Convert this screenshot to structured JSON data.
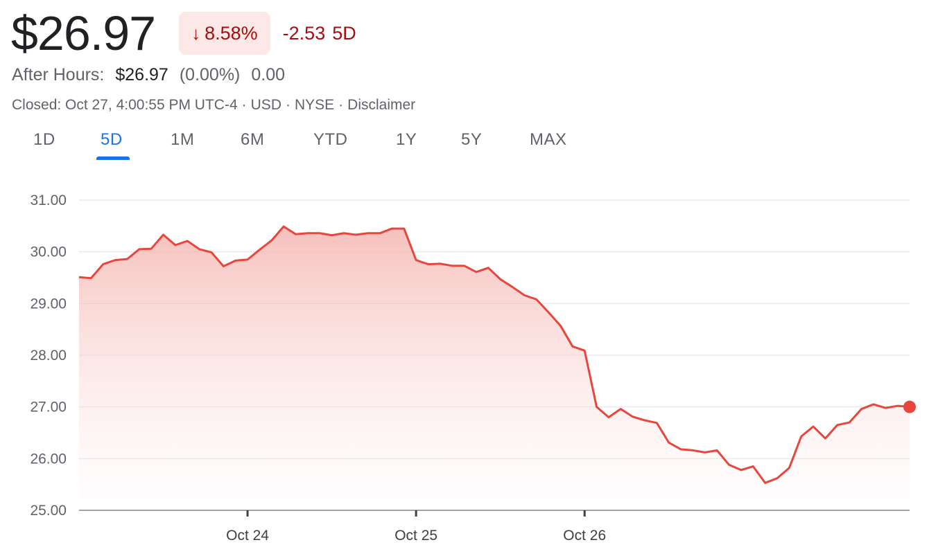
{
  "quote": {
    "price": "$26.97",
    "change_pct": "8.58%",
    "change_abs": "-2.53",
    "change_period": "5D",
    "after_hours_label": "After Hours:",
    "after_hours_price": "$26.97",
    "after_hours_pct": "(0.00%)",
    "after_hours_change": "0.00",
    "closed_text": "Closed: Oct 27, 4:00:55 PM UTC-4",
    "currency": "USD",
    "exchange": "NYSE",
    "disclaimer": "Disclaimer",
    "down_color": "#a50e0e",
    "down_bg": "#fce8e6"
  },
  "tabs": [
    {
      "label": "1D",
      "active": false
    },
    {
      "label": "5D",
      "active": true
    },
    {
      "label": "1M",
      "active": false
    },
    {
      "label": "6M",
      "active": false
    },
    {
      "label": "YTD",
      "active": false
    },
    {
      "label": "1Y",
      "active": false
    },
    {
      "label": "5Y",
      "active": false
    },
    {
      "label": "MAX",
      "active": false
    }
  ],
  "chart_data": {
    "type": "area",
    "title": "",
    "xlabel": "",
    "ylabel": "",
    "ylim": [
      25.0,
      31.0
    ],
    "yticks": [
      "31.00",
      "30.00",
      "29.00",
      "28.00",
      "27.00",
      "26.00",
      "25.00"
    ],
    "xticks": [
      {
        "label": "Oct 24",
        "x": 14
      },
      {
        "label": "Oct 25",
        "x": 28
      },
      {
        "label": "Oct 26",
        "x": 42
      }
    ],
    "grid": true,
    "line_color": "#e8453c",
    "x": [
      0,
      1,
      2,
      3,
      4,
      5,
      6,
      7,
      8,
      9,
      10,
      11,
      12,
      13,
      14,
      15,
      16,
      17,
      18,
      19,
      20,
      21,
      22,
      23,
      24,
      25,
      26,
      27,
      28,
      29,
      30,
      31,
      32,
      33,
      34,
      35,
      36,
      37,
      38,
      39,
      40,
      41,
      42,
      43,
      44,
      45,
      46,
      47,
      48,
      49,
      50,
      51,
      52,
      53,
      54,
      55,
      56,
      57,
      58,
      59,
      60,
      61,
      62,
      63,
      64,
      65,
      66,
      67,
      68,
      69
    ],
    "values": [
      29.51,
      29.49,
      29.76,
      29.84,
      29.86,
      30.05,
      30.06,
      30.33,
      30.13,
      30.21,
      30.05,
      29.99,
      29.72,
      29.83,
      29.85,
      30.04,
      30.22,
      30.49,
      30.34,
      30.36,
      30.36,
      30.32,
      30.36,
      30.33,
      30.36,
      30.36,
      30.45,
      30.45,
      29.84,
      29.76,
      29.77,
      29.73,
      29.73,
      29.61,
      29.69,
      29.47,
      29.32,
      29.16,
      29.08,
      28.83,
      28.57,
      28.17,
      28.09,
      27.0,
      26.8,
      26.96,
      26.81,
      26.74,
      26.69,
      26.31,
      26.18,
      26.16,
      26.12,
      26.16,
      25.88,
      25.78,
      25.85,
      25.53,
      25.62,
      25.82,
      26.43,
      26.62,
      26.39,
      26.65,
      26.7,
      26.96,
      27.05,
      26.98,
      27.02,
      27.0
    ]
  }
}
